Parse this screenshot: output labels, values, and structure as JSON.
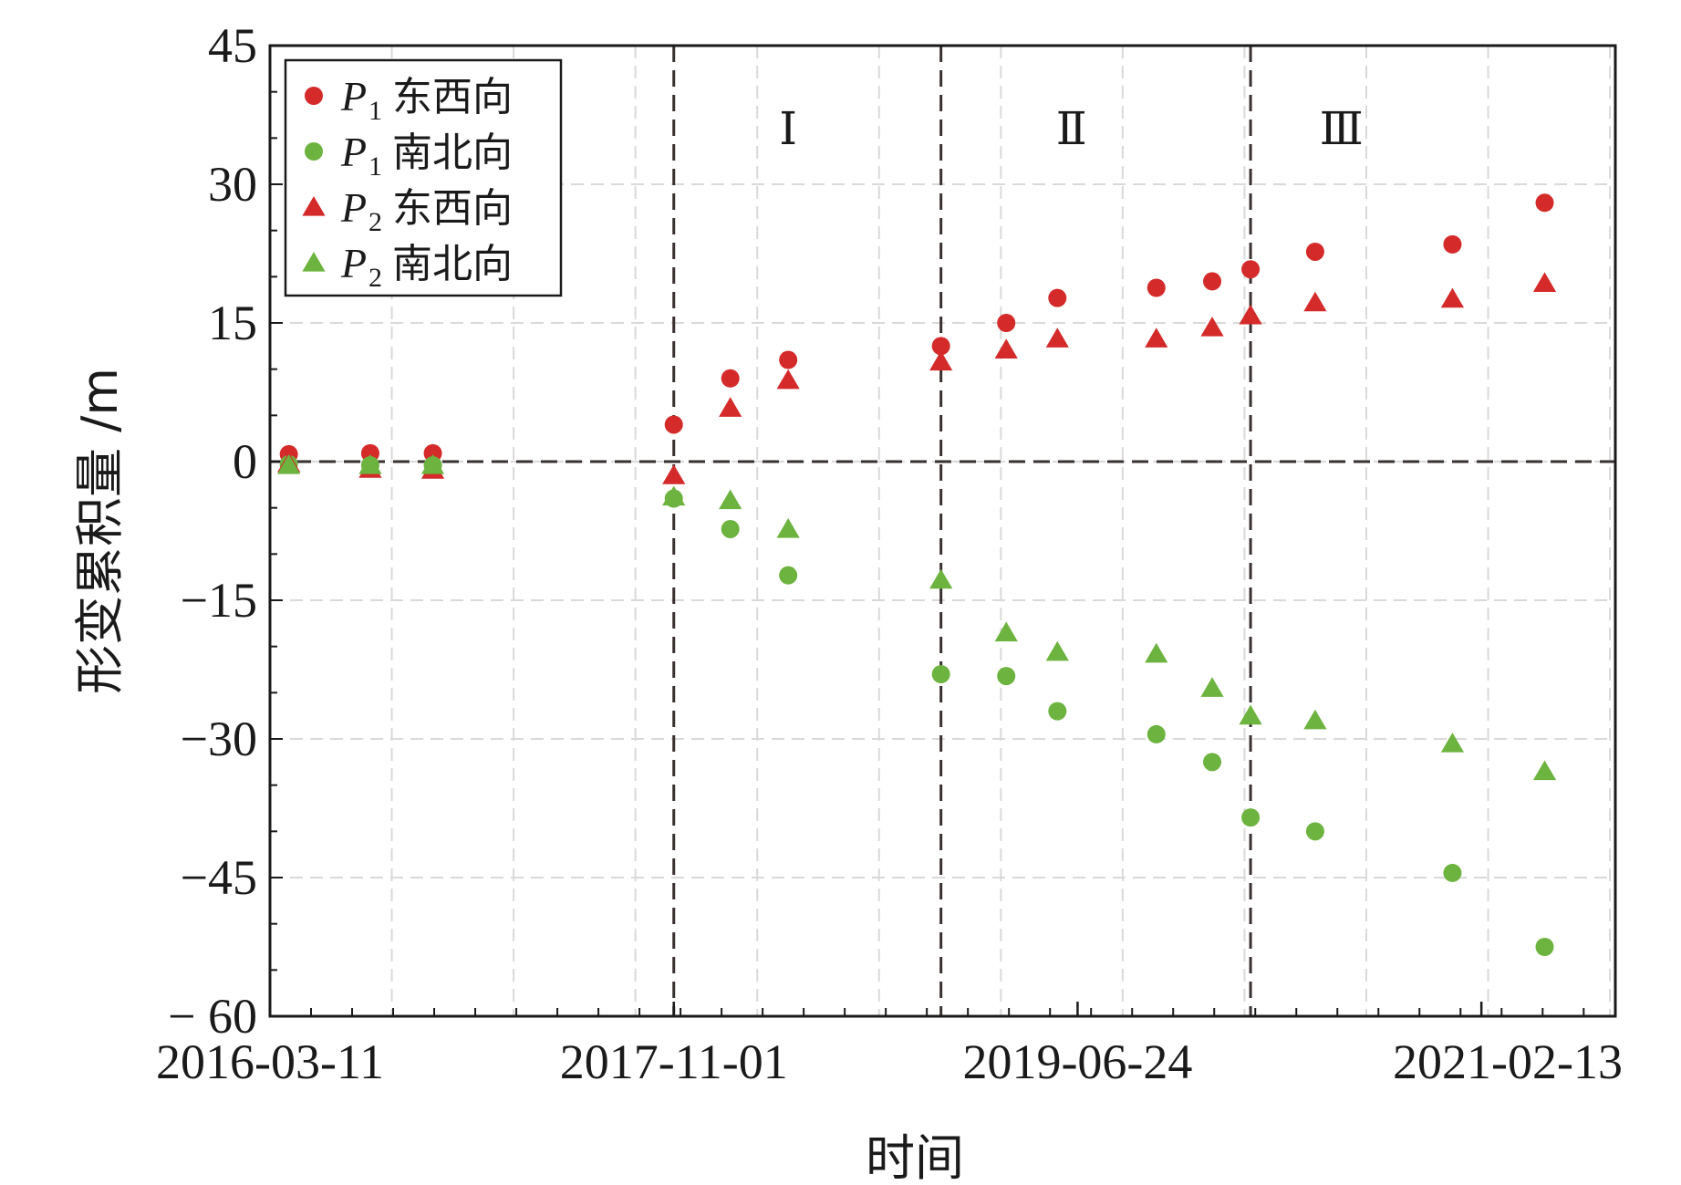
{
  "chart_data": {
    "type": "scatter",
    "title": "",
    "xlabel": "时间",
    "ylabel": "形变累积量 /m",
    "ylim": [
      -60,
      45
    ],
    "yticks": [
      45,
      30,
      15,
      0,
      -15,
      -30,
      -45,
      -60
    ],
    "ytick_labels": [
      "45",
      "30",
      "15",
      "0",
      "−15",
      "−30",
      "−45",
      "− 60"
    ],
    "xticks": [
      "2016-03-11",
      "2017-11-01",
      "2019-06-24",
      "2021-02-13"
    ],
    "xlim": [
      "2016-03-11",
      "2021-08-31"
    ],
    "grid": true,
    "legend_position": "top-left",
    "phase_boundaries": [
      "2017-11-01",
      "2018-12-03",
      "2020-03-07"
    ],
    "phase_labels": [
      {
        "label": "Ⅰ",
        "x": "2018-04-20"
      },
      {
        "label": "Ⅱ",
        "x": "2019-06-15"
      },
      {
        "label": "Ⅲ",
        "x": "2020-07-20"
      }
    ],
    "x": [
      "2016-04-08",
      "2016-08-07",
      "2016-11-08",
      "2017-11-01",
      "2018-01-24",
      "2018-04-20",
      "2018-12-03",
      "2019-03-10",
      "2019-05-25",
      "2019-10-19",
      "2020-01-10",
      "2020-03-07",
      "2020-06-11",
      "2021-01-01",
      "2021-05-18"
    ],
    "series": [
      {
        "name": "P1东西向",
        "label_main": "P",
        "label_sub": "1",
        "label_text": "东西向",
        "marker": "circle",
        "color": "#d42a2a",
        "values": [
          0.8,
          0.9,
          0.9,
          4.0,
          9.0,
          11.0,
          12.5,
          15.0,
          17.7,
          18.8,
          19.5,
          20.8,
          22.7,
          23.5,
          28.0
        ]
      },
      {
        "name": "P1南北向",
        "label_main": "P",
        "label_sub": "1",
        "label_text": "南北向",
        "marker": "circle",
        "color": "#6db33f",
        "values": [
          -0.3,
          -0.4,
          -0.4,
          -4.0,
          -7.3,
          -12.3,
          -23.0,
          -23.2,
          -27.0,
          -29.5,
          -32.5,
          -38.5,
          -40.0,
          -44.5,
          -52.5
        ]
      },
      {
        "name": "P2东西向",
        "label_main": "P",
        "label_sub": "2",
        "label_text": "东西向",
        "marker": "triangle",
        "color": "#d42a2a",
        "values": [
          -0.2,
          -0.8,
          -0.9,
          -1.5,
          5.8,
          8.8,
          10.8,
          12.1,
          13.3,
          13.3,
          14.5,
          15.8,
          17.2,
          17.6,
          19.3
        ]
      },
      {
        "name": "P2南北向",
        "label_main": "P",
        "label_sub": "2",
        "label_text": "南北向",
        "marker": "triangle",
        "color": "#6db33f",
        "values": [
          -0.4,
          -0.4,
          -0.4,
          -3.8,
          -4.2,
          -7.3,
          -12.8,
          -18.5,
          -20.6,
          -20.8,
          -24.5,
          -27.5,
          -28.0,
          -30.5,
          -33.5
        ]
      }
    ]
  }
}
